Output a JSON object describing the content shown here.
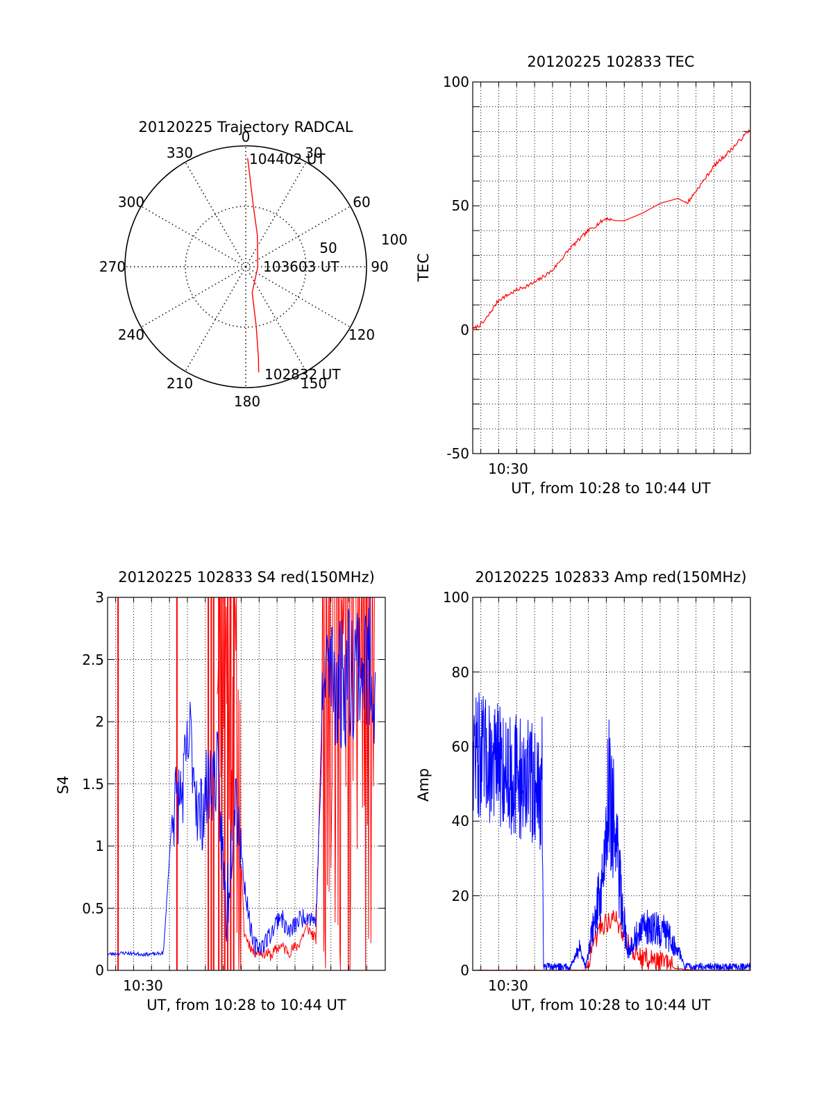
{
  "colors": {
    "red": "#ff0000",
    "blue": "#0000ff",
    "axis": "#000000",
    "grid": "#000000"
  },
  "polar": {
    "title": "20120225 Trajectory RADCAL",
    "angle_labels": [
      "0",
      "30",
      "60",
      "90",
      "120",
      "150",
      "180",
      "210",
      "240",
      "270",
      "300",
      "330"
    ],
    "radius_labels": [
      "50",
      "100"
    ],
    "time_labels": [
      "104402 UT",
      "103603 UT",
      "102832 UT"
    ]
  },
  "tec": {
    "title": "20120225 102833 TEC",
    "ylabel": "TEC",
    "yticks": [
      "100",
      "50",
      "0",
      "-50"
    ],
    "xtick": "10:30",
    "xlabel": "UT, from 10:28 to 10:44 UT"
  },
  "s4": {
    "title": "20120225 102833 S4 red(150MHz)",
    "ylabel": "S4",
    "yticks": [
      "3",
      "2.5",
      "2",
      "1.5",
      "1",
      "0.5",
      "0"
    ],
    "xtick": "10:30",
    "xlabel": "UT, from 10:28 to 10:44 UT"
  },
  "amp": {
    "title": "20120225 102833 Amp red(150MHz)",
    "ylabel": "Amp",
    "yticks": [
      "100",
      "80",
      "60",
      "40",
      "20",
      "0"
    ],
    "xtick": "10:30",
    "xlabel": "UT, from 10:28 to 10:44 UT"
  },
  "chart_data": [
    {
      "type": "scatter",
      "title": "20120225 Trajectory RADCAL",
      "coordinate_system": "polar (azimuth deg clockwise from north, zenith distance)",
      "rlim": [
        0,
        100
      ],
      "series": [
        {
          "color": "#ff0000",
          "azimuth": [
            1,
            2,
            4,
            8,
            20,
            90,
            166,
            170,
            172,
            173
          ],
          "radius": [
            90,
            80,
            65,
            48,
            28,
            10,
            22,
            50,
            75,
            88
          ]
        }
      ],
      "annotations": [
        "104402 UT",
        "103603 UT",
        "102832 UT"
      ]
    },
    {
      "type": "line",
      "title": "20120225 102833 TEC",
      "xlabel": "UT, from 10:28 to 10:44 UT",
      "ylabel": "TEC",
      "xlim": [
        "10:28:33",
        "10:44:02"
      ],
      "ylim": [
        -50,
        100
      ],
      "grid": true,
      "series": [
        {
          "color": "#ff0000",
          "x": [
            "10:28:33",
            "10:29:10",
            "10:30:00",
            "10:31:00",
            "10:32:00",
            "10:33:00",
            "10:34:00",
            "10:35:00",
            "10:36:00",
            "10:36:30",
            "10:37:00",
            "10:38:00",
            "10:39:00",
            "10:40:00",
            "10:40:30",
            "10:41:00",
            "10:42:00",
            "10:43:00",
            "10:44:02"
          ],
          "y": [
            0,
            3,
            12,
            16,
            19,
            24,
            33,
            40,
            45,
            44,
            44,
            47,
            51,
            53,
            51,
            56,
            66,
            73,
            81
          ]
        }
      ]
    },
    {
      "type": "line",
      "title": "20120225 102833 S4 red(150MHz)",
      "xlabel": "UT, from 10:28 to 10:44 UT",
      "ylabel": "S4",
      "ylim": [
        0,
        3
      ],
      "grid": true,
      "series": [
        {
          "color": "#0000ff",
          "x": [
            "10:28:33",
            "10:29:30",
            "10:30:30",
            "10:31:10",
            "10:31:40",
            "10:32:10",
            "10:32:40",
            "10:33:10",
            "10:33:40",
            "10:34:10",
            "10:34:40",
            "10:35:10",
            "10:35:40",
            "10:36:10",
            "10:36:40",
            "10:37:10",
            "10:37:40",
            "10:38:10",
            "10:38:40",
            "10:39:10",
            "10:39:40",
            "10:40:10",
            "10:40:40",
            "10:41:30",
            "10:42:30",
            "10:43:30"
          ],
          "y": [
            0.13,
            0.14,
            0.13,
            0.13,
            0.14,
            1.3,
            1.4,
            1.9,
            1.2,
            1.5,
            1.6,
            0.45,
            1.5,
            0.7,
            0.2,
            0.2,
            0.3,
            0.45,
            0.3,
            0.4,
            0.45,
            0.4,
            2.5,
            2.3,
            2.5,
            2.4
          ]
        },
        {
          "color": "#ff0000",
          "x": [
            "10:34:40",
            "10:35:40",
            "10:36:10",
            "10:36:40",
            "10:37:10",
            "10:37:40",
            "10:38:10",
            "10:38:40",
            "10:39:10",
            "10:39:40",
            "10:40:10",
            "10:40:40",
            "10:41:30",
            "10:42:30",
            "10:43:30"
          ],
          "y": [
            3.0,
            2.0,
            0.3,
            0.15,
            0.15,
            0.12,
            0.2,
            0.15,
            0.2,
            0.35,
            0.25,
            3.0,
            2.0,
            2.5,
            3.0
          ]
        }
      ]
    },
    {
      "type": "line",
      "title": "20120225 102833 Amp red(150MHz)",
      "xlabel": "UT, from 10:28 to 10:44 UT",
      "ylabel": "Amp",
      "ylim": [
        0,
        100
      ],
      "grid": true,
      "series": [
        {
          "color": "#ff0000",
          "x": [
            "10:28:33",
            "10:32:25",
            "10:34:50",
            "10:35:40",
            "10:36:30",
            "10:37:10",
            "10:37:40",
            "10:38:20",
            "10:39:20",
            "10:39:50",
            "10:41:00",
            "10:44:02"
          ],
          "y": [
            0,
            0,
            0,
            12,
            14,
            8,
            4,
            3,
            2,
            0.5,
            0,
            0
          ]
        },
        {
          "color": "#0000ff",
          "x": [
            "10:28:33",
            "10:29:00",
            "10:30:00",
            "10:31:00",
            "10:32:00",
            "10:32:25",
            "10:32:30",
            "10:34:00",
            "10:34:30",
            "10:34:50",
            "10:35:50",
            "10:36:10",
            "10:36:30",
            "10:37:10",
            "10:37:40",
            "10:38:20",
            "10:39:20",
            "10:40:10",
            "10:40:20",
            "10:44:02"
          ],
          "y": [
            60,
            57,
            55,
            52,
            50,
            48,
            1,
            1,
            6,
            1,
            25,
            52,
            35,
            5,
            9,
            12,
            10,
            4,
            1,
            1
          ]
        }
      ]
    }
  ]
}
